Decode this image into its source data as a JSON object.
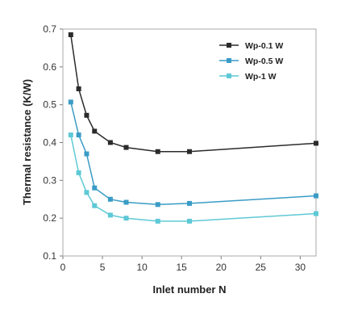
{
  "chart_data": {
    "type": "line",
    "title": "",
    "xlabel": "Inlet number N",
    "ylabel": "Thermal resistance (K/W)",
    "xlim": [
      0,
      32
    ],
    "ylim": [
      0.1,
      0.7
    ],
    "xticks": [
      0,
      5,
      10,
      15,
      20,
      25,
      30
    ],
    "yticks": [
      0.1,
      0.2,
      0.3,
      0.4,
      0.5,
      0.6,
      0.7
    ],
    "xtick_labels": [
      "0",
      "5",
      "10",
      "15",
      "20",
      "25",
      "30"
    ],
    "ytick_labels": [
      "0.1",
      "0.2",
      "0.3",
      "0.4",
      "0.5",
      "0.6",
      "0.7"
    ],
    "grid": false,
    "legend_position": "top-right",
    "x": [
      1,
      2,
      3,
      4,
      6,
      8,
      12,
      16,
      32
    ],
    "series": [
      {
        "name": "Wp-0.1 W",
        "color": "#2b2b2b",
        "values": [
          0.685,
          0.542,
          0.472,
          0.43,
          0.4,
          0.387,
          0.376,
          0.376,
          0.398
        ]
      },
      {
        "name": "Wp-0.5 W",
        "color": "#3a9cc6",
        "values": [
          0.507,
          0.42,
          0.37,
          0.28,
          0.25,
          0.242,
          0.236,
          0.239,
          0.259
        ]
      },
      {
        "name": "Wp-1 W",
        "color": "#5ec9d6",
        "values": [
          0.42,
          0.32,
          0.268,
          0.233,
          0.208,
          0.2,
          0.192,
          0.192,
          0.212
        ]
      }
    ]
  }
}
